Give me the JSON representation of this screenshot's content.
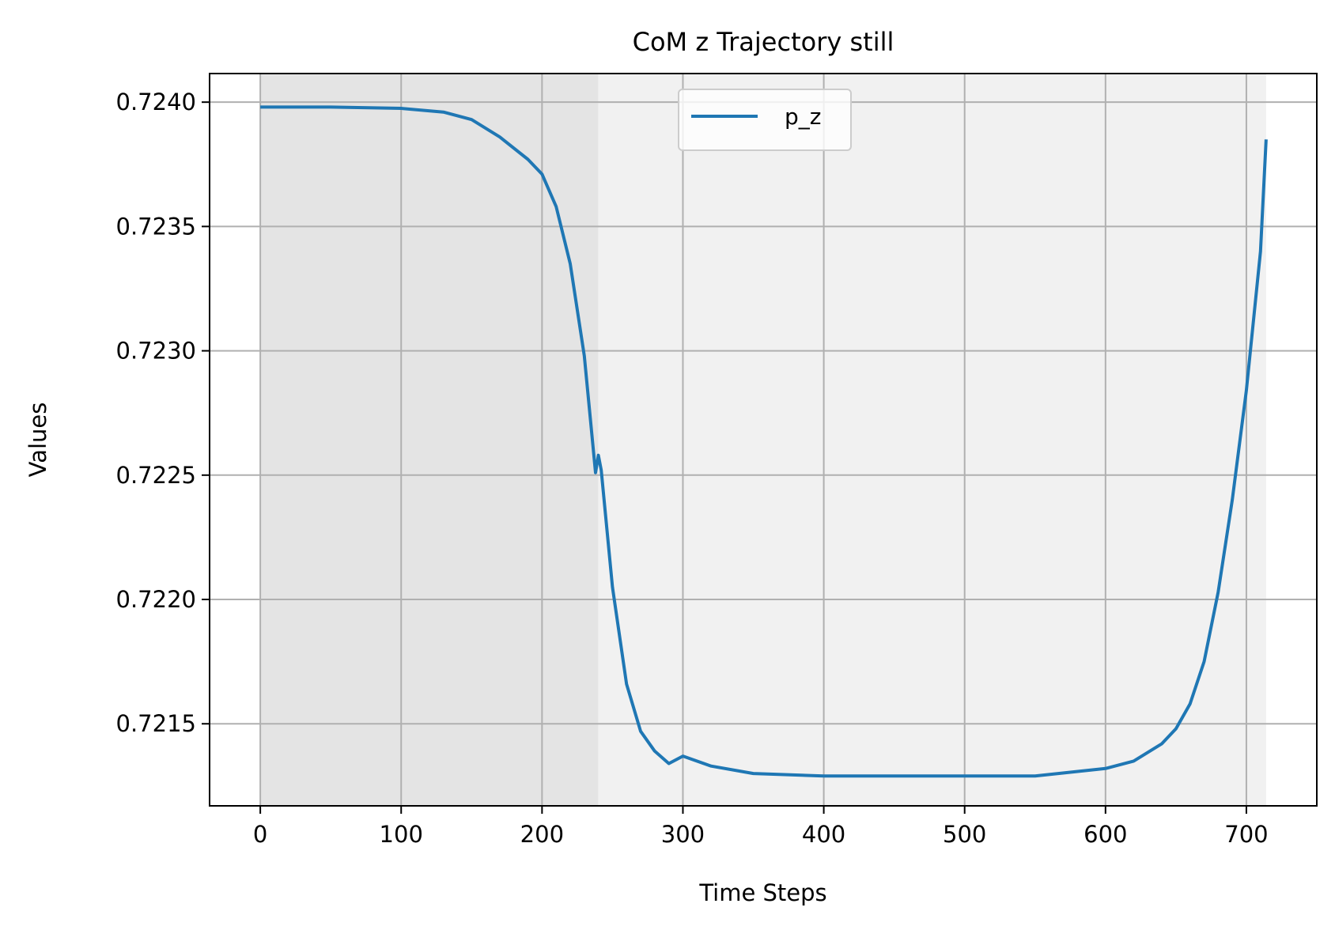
{
  "chart_data": {
    "type": "line",
    "title": "CoM z Trajectory still",
    "xlabel": "Time Steps",
    "ylabel": "Values",
    "xlim": [
      -36,
      750
    ],
    "ylim": [
      0.72117,
      0.724115
    ],
    "xticks": [
      0,
      100,
      200,
      300,
      400,
      500,
      600,
      700
    ],
    "xtick_labels": [
      "0",
      "100",
      "200",
      "300",
      "400",
      "500",
      "600",
      "700"
    ],
    "yticks": [
      0.7215,
      0.722,
      0.7225,
      0.723,
      0.7235,
      0.724
    ],
    "ytick_labels": [
      "0.7215",
      "0.7220",
      "0.7225",
      "0.7230",
      "0.7235",
      "0.7240"
    ],
    "grid": true,
    "legend_position": "upper center",
    "shaded_regions": [
      {
        "x_start": 0,
        "x_end": 240,
        "color": "#e4e4e4"
      },
      {
        "x_start": 240,
        "x_end": 714,
        "color": "#f1f1f1"
      }
    ],
    "series": [
      {
        "name": "p_z",
        "color": "#1f77b4",
        "x": [
          0,
          50,
          100,
          130,
          150,
          170,
          190,
          200,
          210,
          220,
          230,
          238,
          240,
          242,
          250,
          260,
          270,
          280,
          290,
          300,
          320,
          350,
          400,
          450,
          500,
          550,
          600,
          620,
          640,
          650,
          660,
          670,
          680,
          690,
          700,
          710,
          714
        ],
        "y": [
          0.72398,
          0.72398,
          0.723975,
          0.72396,
          0.72393,
          0.72386,
          0.72377,
          0.72371,
          0.72358,
          0.72335,
          0.72298,
          0.72251,
          0.72258,
          0.72252,
          0.72205,
          0.72166,
          0.72147,
          0.72139,
          0.72134,
          0.72137,
          0.72133,
          0.7213,
          0.72129,
          0.72129,
          0.72129,
          0.72129,
          0.72132,
          0.72135,
          0.72142,
          0.72148,
          0.72158,
          0.72175,
          0.72203,
          0.7224,
          0.72284,
          0.7234,
          0.72385
        ]
      }
    ]
  }
}
